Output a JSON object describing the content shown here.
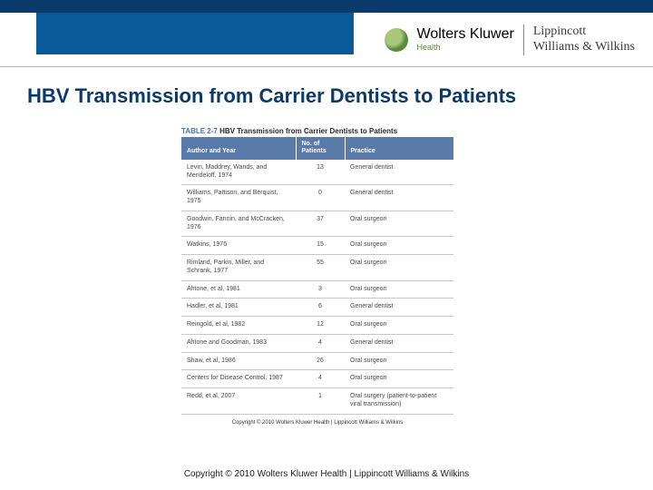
{
  "colors": {
    "top_bar": "#0a3a6a",
    "header_block": "#0a5a9a",
    "title": "#0a3a6a",
    "table_header_bg": "#5a7aaa",
    "table_header_fg": "#ffffff",
    "row_border": "#c8c8c8",
    "cell_text": "#4a4a4a"
  },
  "header": {
    "brand_primary": "Wolters Kluwer",
    "brand_sub": "Health",
    "brand_secondary_line1": "Lippincott",
    "brand_secondary_line2": "Williams & Wilkins"
  },
  "title": "HBV Transmission from Carrier Dentists to Patients",
  "table": {
    "caption_prefix": "TABLE 2-7",
    "caption_text": "HBV Transmission from Carrier Dentists to Patients",
    "columns": [
      "Author and Year",
      "No. of Patients",
      "Practice"
    ],
    "rows": [
      [
        "Levin, Maddrey, Wands, and Mendeloff, 1974",
        "13",
        "General dentist"
      ],
      [
        "Williams, Pattison, and Berquist, 1975",
        "0",
        "General dentist"
      ],
      [
        "Goodwin, Fannin, and McCracken, 1976",
        "37",
        "Oral surgeon"
      ],
      [
        "Watkins, 1976",
        "15",
        "Oral surgeon"
      ],
      [
        "Rimland, Parkin, Miller, and Schrank, 1977",
        "55",
        "Oral surgeon"
      ],
      [
        "Ahtone, et al, 1981",
        "3",
        "Oral surgeon"
      ],
      [
        "Hadler, et al, 1981",
        "6",
        "General dentist"
      ],
      [
        "Reingold, et al, 1982",
        "12",
        "Oral surgeon"
      ],
      [
        "Ahtone and Goodman, 1983",
        "4",
        "General dentist"
      ],
      [
        "Shaw, et al, 1986",
        "26",
        "Oral surgeon"
      ],
      [
        "Centers for Disease Control, 1987",
        "4",
        "Oral surgeon"
      ],
      [
        "Redd, et al, 2007",
        "1",
        "Oral surgery (patient-to-patient viral transmission)"
      ]
    ],
    "inner_copyright": "Copyright © 2010 Wolters Kluwer Health | Lippincott Williams & Wilkins"
  },
  "footer": {
    "copyright": "Copyright © 2010 Wolters Kluwer Health | Lippincott Williams & Wilkins"
  }
}
